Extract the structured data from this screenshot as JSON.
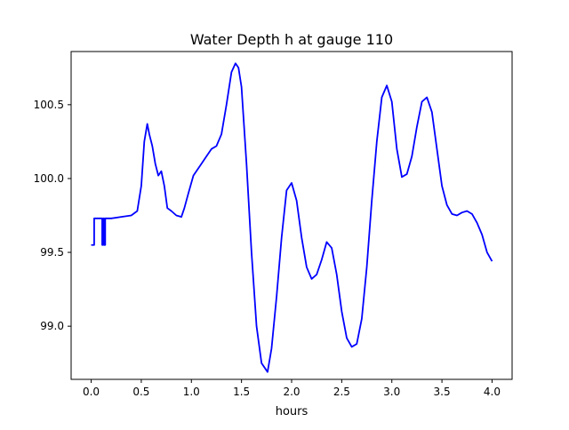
{
  "chart_data": {
    "type": "line",
    "title": "Water Depth h at gauge 110",
    "xlabel": "hours",
    "ylabel": "",
    "xlim": [
      -0.2,
      4.2
    ],
    "ylim": [
      98.64,
      100.86
    ],
    "xticks": [
      0.0,
      0.5,
      1.0,
      1.5,
      2.0,
      2.5,
      3.0,
      3.5,
      4.0
    ],
    "xtick_labels": [
      "0.0",
      "0.5",
      "1.0",
      "1.5",
      "2.0",
      "2.5",
      "3.0",
      "3.5",
      "4.0"
    ],
    "yticks": [
      99.0,
      99.5,
      100.0,
      100.5
    ],
    "ytick_labels": [
      "99.0",
      "99.5",
      "100.0",
      "100.5"
    ],
    "grid": false,
    "line_color": "#0000ff",
    "series": [
      {
        "x": [
          0.0,
          0.03,
          0.03,
          0.05,
          0.08,
          0.1,
          0.11,
          0.11,
          0.12,
          0.12,
          0.13,
          0.13,
          0.14,
          0.14,
          0.15,
          0.2,
          0.3,
          0.4,
          0.46,
          0.5,
          0.53,
          0.56,
          0.58,
          0.61,
          0.64,
          0.67,
          0.7,
          0.73,
          0.76,
          0.8,
          0.85,
          0.9,
          0.93,
          0.97,
          1.02,
          1.1,
          1.15,
          1.2,
          1.25,
          1.3,
          1.35,
          1.4,
          1.44,
          1.47,
          1.5,
          1.55,
          1.6,
          1.65,
          1.7,
          1.76,
          1.8,
          1.85,
          1.9,
          1.95,
          2.0,
          2.05,
          2.1,
          2.15,
          2.2,
          2.25,
          2.3,
          2.35,
          2.4,
          2.45,
          2.5,
          2.55,
          2.6,
          2.65,
          2.7,
          2.75,
          2.8,
          2.85,
          2.9,
          2.95,
          3.0,
          3.05,
          3.1,
          3.15,
          3.2,
          3.25,
          3.3,
          3.35,
          3.4,
          3.45,
          3.5,
          3.55,
          3.6,
          3.65,
          3.7,
          3.75,
          3.8,
          3.85,
          3.9,
          3.95,
          4.0
        ],
        "y": [
          99.55,
          99.55,
          99.73,
          99.73,
          99.73,
          99.73,
          99.73,
          99.55,
          99.55,
          99.73,
          99.73,
          99.55,
          99.55,
          99.73,
          99.73,
          99.73,
          99.74,
          99.75,
          99.78,
          99.95,
          100.25,
          100.37,
          100.3,
          100.22,
          100.1,
          100.02,
          100.05,
          99.95,
          99.8,
          99.78,
          99.75,
          99.74,
          99.8,
          99.9,
          100.02,
          100.1,
          100.15,
          100.2,
          100.22,
          100.3,
          100.5,
          100.72,
          100.78,
          100.75,
          100.62,
          100.1,
          99.5,
          99.0,
          98.75,
          98.69,
          98.85,
          99.2,
          99.6,
          99.92,
          99.97,
          99.85,
          99.6,
          99.4,
          99.32,
          99.35,
          99.45,
          99.57,
          99.53,
          99.35,
          99.1,
          98.92,
          98.86,
          98.88,
          99.05,
          99.4,
          99.85,
          100.25,
          100.55,
          100.63,
          100.52,
          100.2,
          100.01,
          100.03,
          100.15,
          100.35,
          100.52,
          100.55,
          100.45,
          100.2,
          99.95,
          99.82,
          99.76,
          99.75,
          99.77,
          99.78,
          99.76,
          99.7,
          99.62,
          99.5,
          99.44
        ]
      }
    ]
  }
}
